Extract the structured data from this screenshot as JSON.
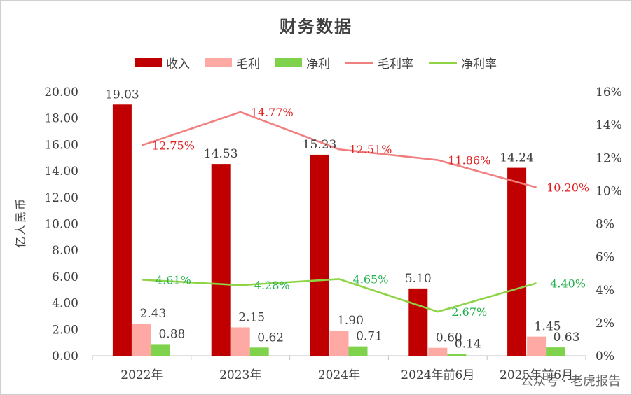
{
  "colors": {
    "revenue": "#c00000",
    "gross_profit": "#ffa9a4",
    "net_profit": "#7fd24c",
    "gross_margin_line": "#f08080",
    "net_margin_line": "#8fd444",
    "gross_margin_label": "#e02020",
    "net_margin_label": "#22b14c"
  },
  "watermark_text": "公众号 · 老虎报告",
  "chart_data": {
    "type": "bar",
    "title": "财务数据",
    "ylabel": "亿人民币",
    "ylim": [
      0,
      20
    ],
    "y_ticks": [
      "0.00",
      "2.00",
      "4.00",
      "6.00",
      "8.00",
      "10.00",
      "12.00",
      "14.00",
      "16.00",
      "18.00",
      "20.00"
    ],
    "y2lim": [
      0,
      16
    ],
    "y2_ticks": [
      "0%",
      "2%",
      "4%",
      "6%",
      "8%",
      "10%",
      "12%",
      "14%",
      "16%"
    ],
    "categories": [
      "2022年",
      "2023年",
      "2024年",
      "2024年前6月",
      "2025年前6月"
    ],
    "series": [
      {
        "name": "收入",
        "kind": "bar",
        "values": [
          19.03,
          14.53,
          15.23,
          5.1,
          14.24
        ],
        "labels": [
          "19.03",
          "14.53",
          "15.23",
          "5.10",
          "14.24"
        ]
      },
      {
        "name": "毛利",
        "kind": "bar",
        "values": [
          2.43,
          2.15,
          1.9,
          0.6,
          1.45
        ],
        "labels": [
          "2.43",
          "2.15",
          "1.90",
          "0.60",
          "1.45"
        ]
      },
      {
        "name": "净利",
        "kind": "bar",
        "values": [
          0.88,
          0.62,
          0.71,
          0.14,
          0.63
        ],
        "labels": [
          "0.88",
          "0.62",
          "0.71",
          "0.14",
          "0.63"
        ]
      },
      {
        "name": "毛利率",
        "kind": "line",
        "axis": "right",
        "values": [
          12.75,
          14.77,
          12.51,
          11.86,
          10.2
        ],
        "labels": [
          "12.75%",
          "14.77%",
          "12.51%",
          "11.86%",
          "10.20%"
        ]
      },
      {
        "name": "净利率",
        "kind": "line",
        "axis": "right",
        "values": [
          4.61,
          4.28,
          4.65,
          2.67,
          4.4
        ],
        "labels": [
          "4.61%",
          "4.28%",
          "4.65%",
          "2.67%",
          "4.40%"
        ]
      }
    ],
    "legend_position": "top",
    "grid": false
  }
}
